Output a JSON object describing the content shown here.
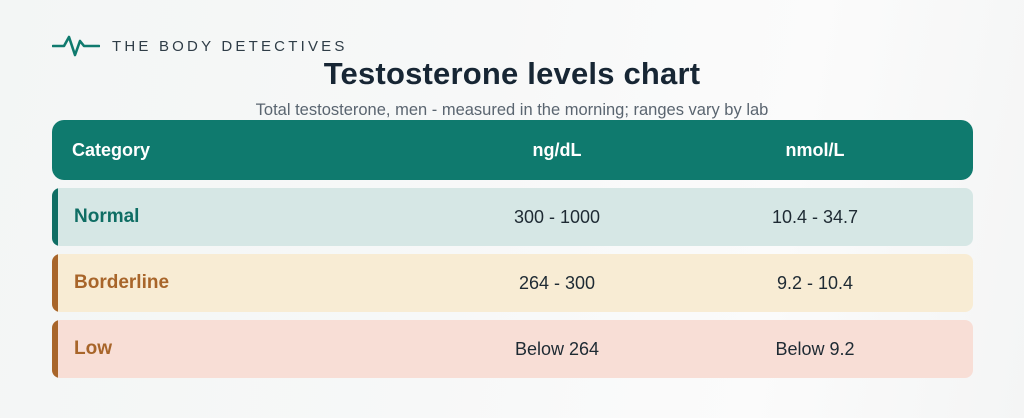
{
  "brand": {
    "name": "THE BODY DETECTIVES",
    "icon": "pulse-icon",
    "accent": "#0f7a6e"
  },
  "title": "Testosterone levels chart",
  "subtitle": "Total testosterone, men  -  measured in the morning; ranges vary by lab",
  "table": {
    "header_color": "#0f7a6e",
    "columns": [
      "Category",
      "ng/dL",
      "nmol/L"
    ],
    "rows": [
      {
        "category": "Normal",
        "ngdl": "300 - 1000",
        "nmoll": "10.4 - 34.7",
        "bg": "#d6e7e5",
        "accent": "#0f6e64",
        "text_color": "#0f6e64"
      },
      {
        "category": "Borderline",
        "ngdl": "264 - 300",
        "nmoll": "9.2 - 10.4",
        "bg": "#f8ecd4",
        "accent": "#a8652a",
        "text_color": "#a8652a"
      },
      {
        "category": "Low",
        "ngdl": "Below 264",
        "nmoll": "Below 9.2",
        "bg": "#f8ded6",
        "accent": "#a8652a",
        "text_color": "#a8652a"
      }
    ]
  }
}
